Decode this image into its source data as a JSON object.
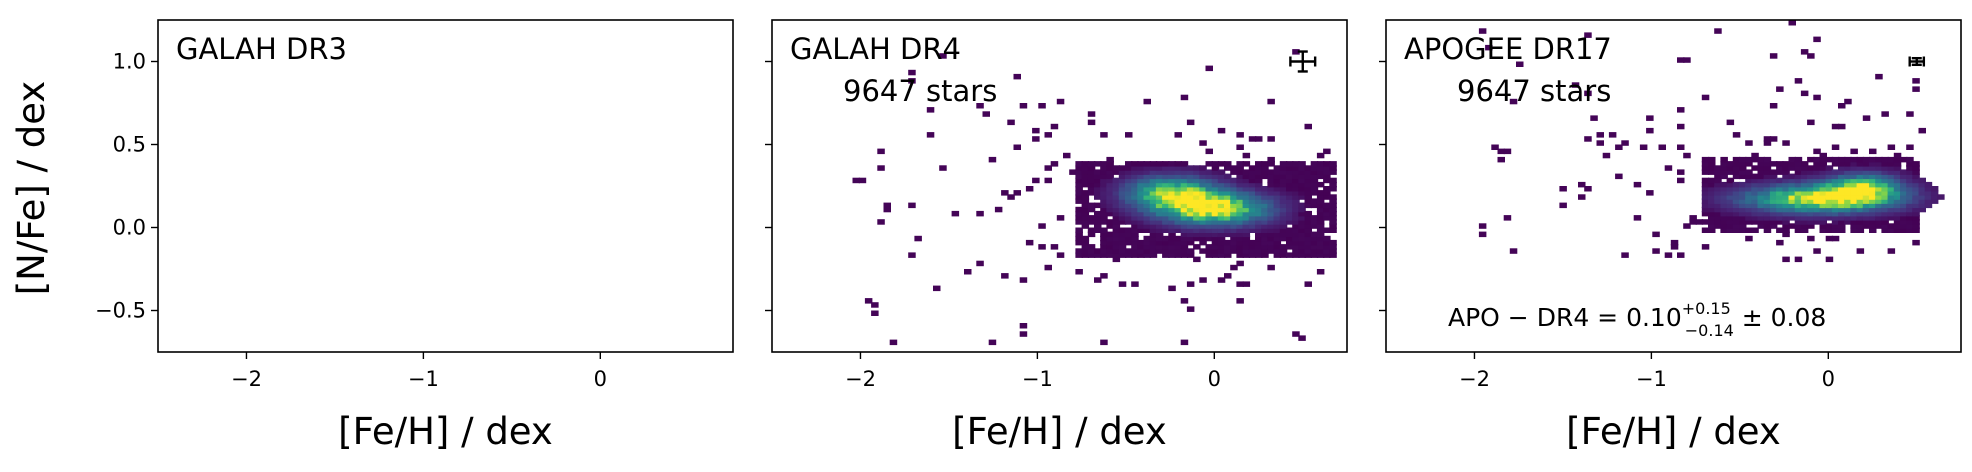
{
  "y_axis_label": "[N/Fe] / dex",
  "x_axis_label": "[Fe/H] / dex",
  "chart_data": [
    {
      "type": "heatmap",
      "title": "GALAH DR3",
      "count_label": "",
      "xlim": [
        -2.5,
        0.75
      ],
      "ylim": [
        -0.75,
        1.25
      ],
      "x_ticks": [
        -2,
        -1,
        0
      ],
      "x_tick_labels": [
        "−2",
        "−1",
        "0"
      ],
      "y_ticks": [
        1.0,
        0.5,
        0.0,
        -0.5
      ],
      "y_tick_labels": [
        "1.0",
        "0.5",
        "0.0",
        "−0.5"
      ],
      "show_y_tick_labels": true,
      "colormap": "viridis",
      "density": null,
      "error_bar": null,
      "annotation": null
    },
    {
      "type": "heatmap",
      "title": "GALAH DR4",
      "count_label": "9647 stars",
      "xlim": [
        -2.5,
        0.75
      ],
      "ylim": [
        -0.75,
        1.25
      ],
      "x_ticks": [
        -2,
        -1,
        0
      ],
      "x_tick_labels": [
        "−2",
        "−1",
        "0"
      ],
      "y_ticks": [
        1.0,
        0.5,
        0.0,
        -0.5
      ],
      "y_tick_labels": [
        "1.0",
        "0.5",
        "0.0",
        "−0.5"
      ],
      "show_y_tick_labels": false,
      "colormap": "viridis",
      "density": {
        "n_stars": 9647,
        "core": {
          "x_center": -0.05,
          "x_halfwidth": 0.75,
          "y_center": 0.12,
          "y_sigma": 0.13
        },
        "peaks": [
          {
            "x": 0.0,
            "y": 0.12,
            "amplitude": 1.0,
            "sx": 0.22,
            "sy": 0.07
          },
          {
            "x": -0.25,
            "y": 0.22,
            "amplitude": 0.8,
            "sx": 0.18,
            "sy": 0.07
          }
        ],
        "sparse_x_range": [
          -2.2,
          0.7
        ],
        "sparse_y_range": [
          -0.7,
          1.1
        ]
      },
      "error_bar": {
        "x": 0.5,
        "y": 1.0,
        "xerr": 0.07,
        "yerr": 0.06
      },
      "annotation": null
    },
    {
      "type": "heatmap",
      "title": "APOGEE DR17",
      "count_label": "9647 stars",
      "xlim": [
        -2.5,
        0.75
      ],
      "ylim": [
        -0.75,
        1.25
      ],
      "x_ticks": [
        -2,
        -1,
        0
      ],
      "x_tick_labels": [
        "−2",
        "−1",
        "0"
      ],
      "y_ticks": [
        1.0,
        0.5,
        0.0,
        -0.5
      ],
      "y_tick_labels": [
        "1.0",
        "0.5",
        "0.0",
        "−0.5"
      ],
      "show_y_tick_labels": false,
      "colormap": "viridis",
      "density": {
        "n_stars": 9647,
        "core": {
          "x_center": -0.1,
          "x_halfwidth": 0.6,
          "y_center": 0.2,
          "y_sigma": 0.1
        },
        "peaks": [
          {
            "x": -0.05,
            "y": 0.18,
            "amplitude": 1.0,
            "sx": 0.3,
            "sy": 0.06
          },
          {
            "x": 0.2,
            "y": 0.25,
            "amplitude": 0.7,
            "sx": 0.15,
            "sy": 0.06
          }
        ],
        "sparse_x_range": [
          -2.0,
          0.55
        ],
        "sparse_y_range": [
          -0.2,
          1.25
        ]
      },
      "error_bar": {
        "x": 0.5,
        "y": 1.0,
        "xerr": 0.04,
        "yerr": 0.02
      },
      "annotation": {
        "prefix": "APO − DR4 = 0.10",
        "sup": "+0.15",
        "sub": "−0.14",
        "suffix": " ± 0.08"
      }
    }
  ]
}
